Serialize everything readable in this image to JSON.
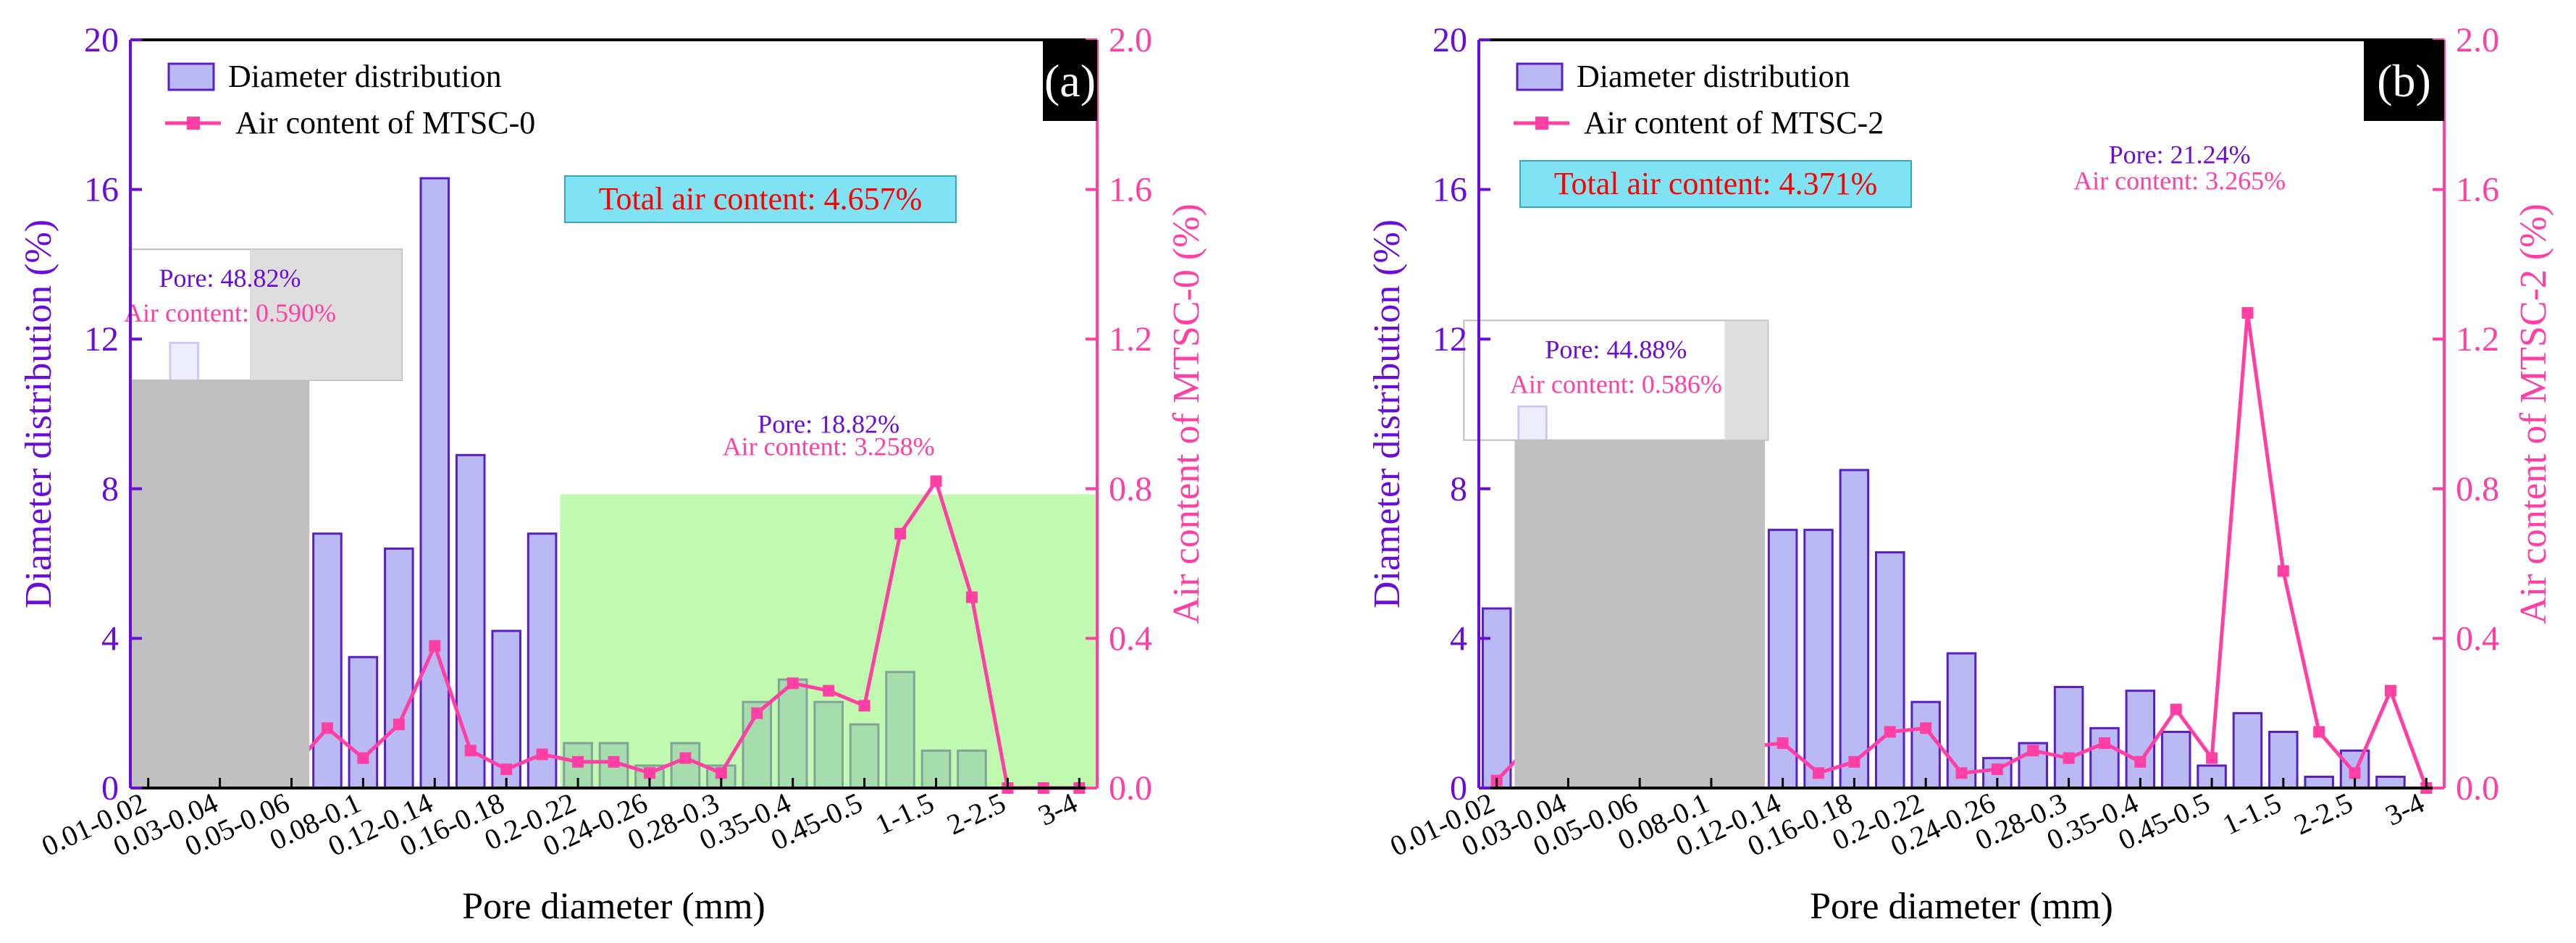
{
  "colors": {
    "left_axis": "#6a0dd8",
    "right_axis": "#ff3fa4",
    "bar_fill": "#b9b9f4",
    "bar_stroke": "#5a1fc4",
    "line": "#ff3fa4",
    "gray_region": "#c0c0c0",
    "green_region": "#99f57f",
    "total_box_fill": "#7fe3f3",
    "total_text": "#ff0000",
    "pore_text": "#6a0dd8",
    "air_text": "#ff3fa4"
  },
  "chart_data": [
    {
      "type": "bar+line",
      "panel_label": "(a)",
      "categories": [
        "0.01-0.02",
        "0.02-0.03",
        "0.03-0.04",
        "0.04-0.05",
        "0.05-0.06",
        "0.06-0.08",
        "0.08-0.1",
        "0.1-0.12",
        "0.12-0.14",
        "0.14-0.16",
        "0.16-0.18",
        "0.18-0.2",
        "0.2-0.22",
        "0.22-0.24",
        "0.24-0.26",
        "0.26-0.28",
        "0.28-0.3",
        "0.3-0.35",
        "0.35-0.4",
        "0.4-0.45",
        "0.45-0.5",
        "0.5-1",
        "1-1.5",
        "1.5-2",
        "2-2.5",
        "2.5-3",
        "3-4"
      ],
      "tick_labels": [
        "0.01-0.02",
        "0.03-0.04",
        "0.05-0.06",
        "0.08-0.1",
        "0.12-0.14",
        "0.16-0.18",
        "0.2-0.22",
        "0.24-0.26",
        "0.28-0.3",
        "0.35-0.4",
        "0.45-0.5",
        "1-1.5",
        "2-2.5",
        "3-4"
      ],
      "series": [
        {
          "name": "Diameter distribution",
          "axis": "left",
          "kind": "bar",
          "values": [
            5.2,
            11.9,
            10.5,
            6.0,
            2.2,
            6.8,
            3.5,
            6.4,
            16.3,
            8.9,
            4.2,
            6.8,
            1.2,
            1.2,
            0.6,
            1.2,
            0.6,
            2.3,
            2.9,
            2.3,
            1.7,
            3.1,
            1.0,
            1.0,
            0.0,
            0.0,
            0.0
          ]
        },
        {
          "name": "Air content of MTSC-0",
          "axis": "right",
          "kind": "line",
          "values": [
            0.02,
            0.1,
            0.12,
            0.06,
            0.05,
            0.16,
            0.08,
            0.17,
            0.38,
            0.1,
            0.05,
            0.09,
            0.07,
            0.07,
            0.04,
            0.08,
            0.04,
            0.2,
            0.28,
            0.26,
            0.22,
            0.68,
            0.82,
            0.51,
            0.0,
            0.0,
            0.0
          ]
        }
      ],
      "title": "",
      "xlabel": "Pore diameter (mm)",
      "ylabel_left": "Diameter distribution (%)",
      "ylabel_right": "Air content of MTSC-0 (%)",
      "ylim_left": [
        0,
        20
      ],
      "ylim_right": [
        0,
        2.0
      ],
      "yticks_left": [
        "0",
        "4",
        "8",
        "12",
        "16",
        "20"
      ],
      "yticks_right": [
        "0.0",
        "0.4",
        "0.8",
        "1.2",
        "1.6",
        "2.0"
      ],
      "legend": [
        "Diameter distribution",
        "Air content of MTSC-0"
      ],
      "total_label": "Total air content: 4.657%",
      "region1": {
        "range_categories": [
          0,
          5
        ],
        "height": 10.9,
        "pore": "Pore: 48.82%",
        "air": "Air content: 0.590%"
      },
      "region2": {
        "range_categories": [
          12,
          27
        ],
        "height": 7.85,
        "pore": "Pore: 18.82%",
        "air": "Air content: 3.258%"
      }
    },
    {
      "type": "bar+line",
      "panel_label": "(b)",
      "categories": [
        "0.01-0.02",
        "0.02-0.03",
        "0.03-0.04",
        "0.04-0.05",
        "0.05-0.06",
        "0.06-0.08",
        "0.08-0.1",
        "0.1-0.12",
        "0.12-0.14",
        "0.14-0.16",
        "0.16-0.18",
        "0.18-0.2",
        "0.2-0.22",
        "0.22-0.24",
        "0.24-0.26",
        "0.26-0.28",
        "0.28-0.3",
        "0.3-0.35",
        "0.35-0.4",
        "0.4-0.45",
        "0.45-0.5",
        "0.5-1",
        "1-1.5",
        "1.5-2",
        "2-2.5",
        "2.5-3",
        "3-4"
      ],
      "tick_labels": [
        "0.01-0.02",
        "0.03-0.04",
        "0.05-0.06",
        "0.08-0.1",
        "0.12-0.14",
        "0.16-0.18",
        "0.2-0.22",
        "0.24-0.26",
        "0.28-0.3",
        "0.35-0.4",
        "0.45-0.5",
        "1-1.5",
        "2-2.5",
        "3-4"
      ],
      "series": [
        {
          "name": "Diameter distribution",
          "axis": "left",
          "kind": "bar",
          "values": [
            4.8,
            10.2,
            8.0,
            6.5,
            5.0,
            4.5,
            4.0,
            5.2,
            6.9,
            6.9,
            8.5,
            6.3,
            2.3,
            3.6,
            0.8,
            1.2,
            2.7,
            1.6,
            2.6,
            1.5,
            0.6,
            2.0,
            1.5,
            0.3,
            1.0,
            0.3,
            0.0
          ]
        },
        {
          "name": "Air content of MTSC-2",
          "axis": "right",
          "kind": "line",
          "values": [
            0.02,
            0.12,
            0.1,
            0.08,
            0.07,
            0.06,
            0.06,
            0.11,
            0.12,
            0.04,
            0.07,
            0.15,
            0.16,
            0.04,
            0.05,
            0.1,
            0.08,
            0.12,
            0.07,
            0.21,
            0.08,
            1.27,
            0.58,
            0.15,
            0.04,
            0.26,
            0.0
          ]
        }
      ],
      "title": "",
      "xlabel": "Pore diameter (mm)",
      "ylabel_left": "Diameter distribution (%)",
      "ylabel_right": "Air content of MTSC-2 (%)",
      "ylim_left": [
        0,
        20
      ],
      "ylim_right": [
        0,
        2.0
      ],
      "yticks_left": [
        "0",
        "4",
        "8",
        "12",
        "16",
        "20"
      ],
      "yticks_right": [
        "0.0",
        "0.4",
        "0.8",
        "1.2",
        "1.6",
        "2.0"
      ],
      "legend": [
        "Diameter distribution",
        "Air content of MTSC-2"
      ],
      "total_label": "Total air content: 4.371%",
      "region1": {
        "range_categories": [
          1,
          8
        ],
        "height": 9.3,
        "pore": "Pore: 44.88%",
        "air": "Air content: 0.586%"
      },
      "region2": null,
      "peak_label": {
        "pore": "Pore: 21.24%",
        "air": "Air content: 3.265%"
      }
    }
  ]
}
